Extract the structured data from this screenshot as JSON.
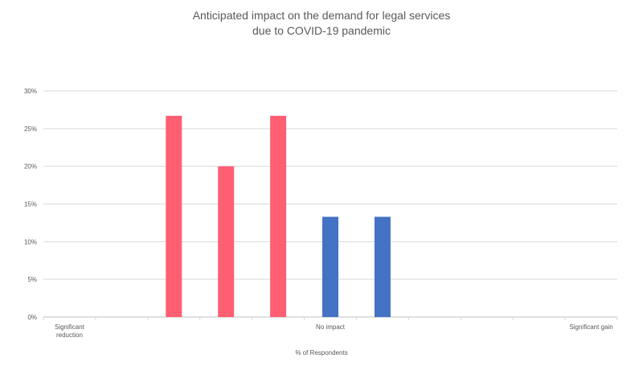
{
  "chart_data": {
    "type": "bar",
    "title_lines": [
      "Anticipated impact on the demand for legal services",
      "due to COVID-19 pandemic"
    ],
    "xlabel": "% of Respondents",
    "ylabel": "",
    "ylim": [
      0,
      0.3
    ],
    "yticks": [
      "0%",
      "5%",
      "10%",
      "15%",
      "20%",
      "25%",
      "30%"
    ],
    "grid": true,
    "categories": [
      "Significant reduction",
      "",
      "",
      "",
      "",
      "No impact",
      "",
      "",
      "",
      "",
      "Significant gain"
    ],
    "category_labels": [
      {
        "index": 0,
        "lines": [
          "Significant",
          "reduction"
        ]
      },
      {
        "index": 5,
        "lines": [
          "No impact"
        ]
      },
      {
        "index": 10,
        "lines": [
          "Significant gain"
        ]
      }
    ],
    "values": [
      0,
      0,
      0.267,
      0.2,
      0.267,
      0.133,
      0.133,
      0,
      0,
      0,
      0
    ],
    "colors": [
      "#FF5F73",
      "#FF5F73",
      "#FF5F73",
      "#FF5F73",
      "#FF5F73",
      "#4472C4",
      "#4472C4",
      "#4472C4",
      "#4472C4",
      "#4472C4",
      "#4472C4"
    ]
  }
}
